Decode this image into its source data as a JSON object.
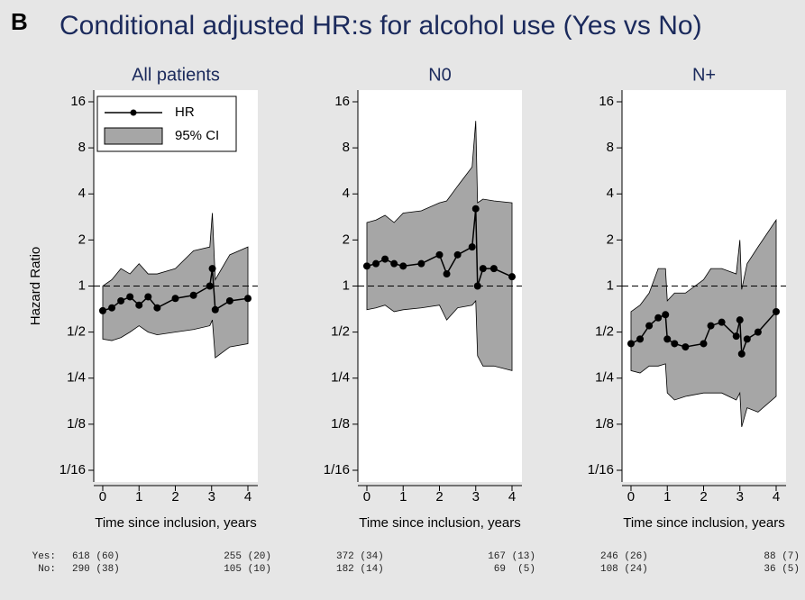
{
  "panel_label": "B",
  "title": "Conditional adjusted HR:s for alcohol use (Yes vs No)",
  "at_risk_labels": [
    "Yes:",
    "No:"
  ],
  "chart_data": [
    {
      "type": "line",
      "title": "All patients",
      "xlabel": "Time since inclusion, years",
      "ylabel": "Hazard Ratio",
      "log_y": 2,
      "legend": "upper left",
      "hline": 1,
      "xlim": [
        -0.248,
        4.273
      ],
      "xticks": [
        0,
        1,
        2,
        3,
        4
      ],
      "ylim": [
        0.0524,
        19.08
      ],
      "yticks": [
        {
          "value": 0.0625,
          "label": "1/16"
        },
        {
          "value": 0.125,
          "label": "1/8"
        },
        {
          "value": 0.25,
          "label": "1/4"
        },
        {
          "value": 0.5,
          "label": "1/2"
        },
        1,
        2,
        4,
        8,
        16
      ],
      "x": [
        0,
        0.25,
        0.5,
        0.75,
        1.0,
        1.25,
        1.5,
        2.0,
        2.5,
        2.95,
        3.02,
        3.1,
        3.5,
        4.0
      ],
      "series": [
        {
          "name": "HR",
          "color": "#000000",
          "values": [
            0.69,
            0.72,
            0.8,
            0.85,
            0.75,
            0.85,
            0.72,
            0.83,
            0.87,
            1.0,
            1.3,
            0.7,
            0.8,
            0.83
          ]
        },
        {
          "name": "95% CI",
          "color": "#a6a6a6",
          "upper": [
            1.0,
            1.1,
            1.3,
            1.2,
            1.4,
            1.2,
            1.2,
            1.3,
            1.7,
            1.8,
            3.0,
            1.1,
            1.6,
            1.8
          ],
          "lower": [
            0.45,
            0.44,
            0.46,
            0.5,
            0.55,
            0.5,
            0.48,
            0.5,
            0.52,
            0.55,
            0.6,
            0.34,
            0.4,
            0.42
          ]
        }
      ],
      "at_risk": [
        [
          "618 (60)",
          "255 (20)"
        ],
        [
          "290 (38)",
          "105 (10)"
        ]
      ]
    },
    {
      "type": "line",
      "title": "N0",
      "xlabel": "Time since inclusion, years",
      "log_y": 2,
      "hline": 1,
      "xlim": [
        -0.248,
        4.273
      ],
      "xticks": [
        0,
        1,
        2,
        3,
        4
      ],
      "ylim": [
        0.0524,
        19.08
      ],
      "yticks": [
        {
          "value": 0.0625,
          "label": "1/16"
        },
        {
          "value": 0.125,
          "label": "1/8"
        },
        {
          "value": 0.25,
          "label": "1/4"
        },
        {
          "value": 0.5,
          "label": "1/2"
        },
        1,
        2,
        4,
        8,
        16
      ],
      "x": [
        0,
        0.25,
        0.5,
        0.75,
        1.0,
        1.5,
        2.0,
        2.2,
        2.5,
        2.9,
        3.0,
        3.05,
        3.2,
        3.5,
        4.0
      ],
      "series": [
        {
          "color": "#000000",
          "values": [
            1.35,
            1.4,
            1.5,
            1.4,
            1.35,
            1.4,
            1.6,
            1.2,
            1.6,
            1.8,
            3.2,
            1.0,
            1.3,
            1.3,
            1.15
          ]
        },
        {
          "color": "#a6a6a6",
          "upper": [
            2.6,
            2.7,
            2.9,
            2.6,
            3.0,
            3.1,
            3.5,
            3.6,
            4.5,
            6.0,
            12,
            3.5,
            3.7,
            3.6,
            3.5
          ],
          "lower": [
            0.7,
            0.72,
            0.75,
            0.68,
            0.7,
            0.72,
            0.75,
            0.6,
            0.72,
            0.75,
            0.8,
            0.35,
            0.3,
            0.3,
            0.28
          ]
        }
      ],
      "at_risk": [
        [
          "372 (34)",
          "167 (13)"
        ],
        [
          "182 (14)",
          "69  (5)"
        ]
      ]
    },
    {
      "type": "line",
      "title": "N+",
      "xlabel": "Time since inclusion, years",
      "log_y": 2,
      "hline": 1,
      "xlim": [
        -0.248,
        4.273
      ],
      "xticks": [
        0,
        1,
        2,
        3,
        4
      ],
      "ylim": [
        0.0524,
        19.08
      ],
      "yticks": [
        {
          "value": 0.0625,
          "label": "1/16"
        },
        {
          "value": 0.125,
          "label": "1/8"
        },
        {
          "value": 0.25,
          "label": "1/4"
        },
        {
          "value": 0.5,
          "label": "1/2"
        },
        1,
        2,
        4,
        8,
        16
      ],
      "x": [
        0,
        0.25,
        0.5,
        0.75,
        0.95,
        1.0,
        1.2,
        1.5,
        2.0,
        2.2,
        2.5,
        2.9,
        3.0,
        3.05,
        3.2,
        3.5,
        4.0
      ],
      "series": [
        {
          "color": "#000000",
          "values": [
            0.42,
            0.45,
            0.55,
            0.62,
            0.65,
            0.45,
            0.42,
            0.4,
            0.42,
            0.55,
            0.58,
            0.47,
            0.6,
            0.36,
            0.45,
            0.5,
            0.68
          ]
        },
        {
          "color": "#a6a6a6",
          "upper": [
            0.68,
            0.75,
            0.9,
            1.3,
            1.3,
            0.8,
            0.9,
            0.9,
            1.1,
            1.3,
            1.3,
            1.2,
            2.0,
            0.95,
            1.4,
            1.8,
            2.7
          ],
          "lower": [
            0.28,
            0.27,
            0.3,
            0.3,
            0.31,
            0.2,
            0.18,
            0.19,
            0.2,
            0.2,
            0.2,
            0.18,
            0.2,
            0.12,
            0.16,
            0.15,
            0.19
          ]
        }
      ],
      "at_risk": [
        [
          "246 (26)",
          "88 (7)"
        ],
        [
          "108 (24)",
          "36 (5)"
        ]
      ]
    }
  ]
}
